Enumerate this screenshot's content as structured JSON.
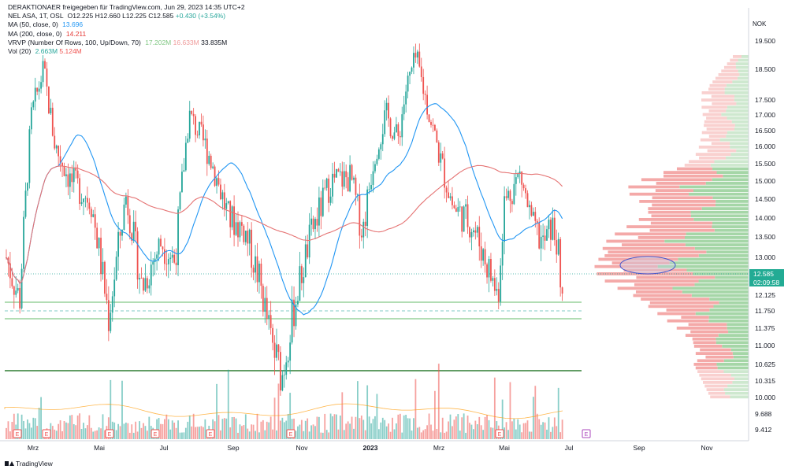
{
  "header": {
    "line1": "DERAKTIONAER freigegeben für TradingView.com, Jun 29, 2023 14:35 UTC+2"
  },
  "legend": {
    "symbol": {
      "label": "NEL ASA, 1T, OSL",
      "o": "O12.225",
      "h": "H12.660",
      "l": "L12.225",
      "c": "C12.585",
      "chg": "+0.430 (+3.54%)"
    },
    "ma50": {
      "label": "MA (50, close, 0)",
      "value": "13.696"
    },
    "ma200": {
      "label": "MA (200, close, 0)",
      "value": "14.211"
    },
    "vrvp": {
      "label": "VRVP (Number Of Rows, 100, Up/Down, 70)",
      "up": "17.202M",
      "down": "16.633M",
      "total": "33.835M"
    },
    "vol": {
      "label": "Vol (20)",
      "v1": "2.663M",
      "v2": "5.124M"
    }
  },
  "price_tag": {
    "price": "12.585",
    "countdown": "02:09:58"
  },
  "footer": {
    "brand": "TradingView"
  },
  "colors": {
    "up": "#26a69a",
    "down": "#ef5350",
    "ma50": "#2196f3",
    "ma200": "#e57373",
    "support": "#4caf50",
    "vp_up": "#a5d6a7",
    "vp_down": "#f4a9a8",
    "earn": "#26a69a",
    "earn_future": "#ab47bc",
    "ellipse": "#4455cc"
  },
  "chart_data": {
    "type": "candlestick",
    "title": "NEL ASA, 1T, OSL",
    "unit": "NOK",
    "y_axis_labels": [
      "19.500",
      "18.500",
      "17.500",
      "17.000",
      "16.500",
      "16.000",
      "15.500",
      "15.000",
      "14.500",
      "14.000",
      "13.500",
      "13.000",
      "12.125",
      "11.750",
      "11.375",
      "11.000",
      "10.625",
      "10.315",
      "10.000",
      "9.688",
      "9.412"
    ],
    "x_axis_labels": [
      "Mrz",
      "Mai",
      "Jul",
      "Sep",
      "Nov",
      "2023",
      "Mrz",
      "Mai",
      "Jul",
      "Sep",
      "Nov"
    ],
    "last_price": 12.585,
    "ohlc_last": {
      "open": 12.225,
      "high": 12.66,
      "low": 12.225,
      "close": 12.585
    },
    "support_levels": [
      11.93,
      11.78,
      11.68,
      10.5
    ],
    "approx_key_points": [
      {
        "date": "Mrz 2022",
        "price": 18.7
      },
      {
        "date": "Mai 2022",
        "price": 11.5
      },
      {
        "date": "Jul 2022",
        "price": 17.0
      },
      {
        "date": "Okt 2022",
        "price": 10.3
      },
      {
        "date": "Feb 2023",
        "price": 18.9
      },
      {
        "date": "Mai 2023",
        "price": 12.0
      },
      {
        "date": "Jun 2023",
        "price": 11.7
      }
    ],
    "earnings_markers": [
      "E",
      "E",
      "E",
      "E",
      "E",
      "E",
      "E",
      "E",
      "E"
    ]
  }
}
